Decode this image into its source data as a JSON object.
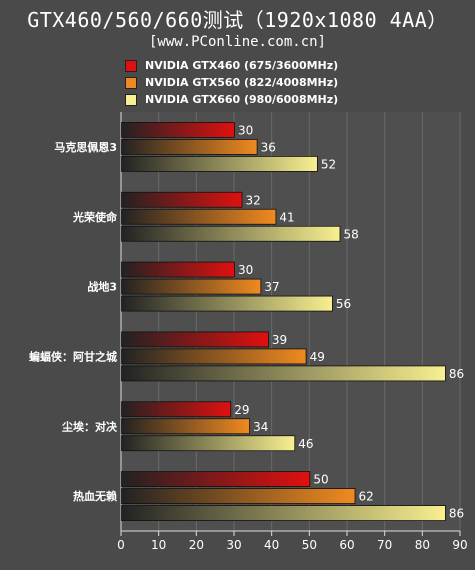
{
  "chart_data": {
    "type": "bar",
    "orientation": "horizontal",
    "title": "GTX460/560/660测试（1920x1080 4AA）",
    "subtitle": "[www.PConline.com.cn]",
    "categories": [
      "马克思佩恩3",
      "光荣使命",
      "战地3",
      "蝙蝠侠：阿甘之城",
      "尘埃：对决",
      "热血无赖"
    ],
    "series": [
      {
        "name": "NVIDIA GTX460 (675/3600MHz)",
        "values": [
          30,
          32,
          30,
          39,
          29,
          50
        ],
        "color": "#e01010"
      },
      {
        "name": "NVIDIA GTX560 (822/4008MHz)",
        "values": [
          36,
          41,
          37,
          49,
          34,
          62
        ],
        "color": "#f08a20"
      },
      {
        "name": "NVIDIA GTX660 (980/6008MHz)",
        "values": [
          52,
          58,
          56,
          86,
          46,
          86
        ],
        "color": "#f8f090"
      }
    ],
    "xlim": [
      0,
      90
    ],
    "xticks": [
      0,
      10,
      20,
      30,
      40,
      50,
      60,
      70,
      80,
      90
    ],
    "grid": true,
    "legend_position": "top"
  }
}
